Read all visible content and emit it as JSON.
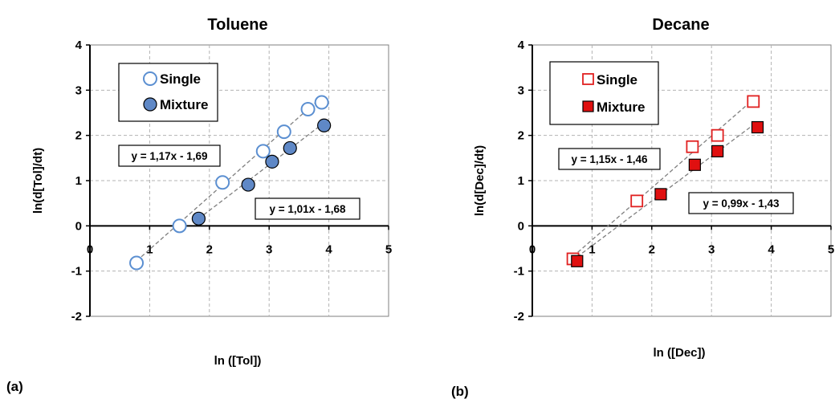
{
  "chart_data": [
    {
      "type": "scatter",
      "title": "Toluene",
      "xlabel": "ln ([Tol])",
      "ylabel": "ln(d[Tol]/dt)",
      "panel_label": "(a)",
      "xlim": [
        0,
        5
      ],
      "ylim": [
        -2,
        4
      ],
      "xticks": [
        "0",
        "1",
        "2",
        "3",
        "4",
        "5"
      ],
      "yticks": [
        "-2",
        "-1",
        "0",
        "1",
        "2",
        "3",
        "4"
      ],
      "grid": true,
      "legend_position": "top-left",
      "series": [
        {
          "name": "Single",
          "marker": "circle",
          "filled": false,
          "color": "#5b8fd1",
          "points": [
            [
              0.78,
              -0.82
            ],
            [
              1.5,
              0.0
            ],
            [
              2.22,
              0.96
            ],
            [
              2.9,
              1.65
            ],
            [
              3.25,
              2.08
            ],
            [
              3.65,
              2.58
            ],
            [
              3.88,
              2.73
            ]
          ]
        },
        {
          "name": "Mixture",
          "marker": "circle",
          "filled": true,
          "color": "#5f88c6",
          "points": [
            [
              1.82,
              0.16
            ],
            [
              2.65,
              0.91
            ],
            [
              3.05,
              1.42
            ],
            [
              3.35,
              1.72
            ],
            [
              3.92,
              2.22
            ]
          ]
        }
      ],
      "fits": [
        {
          "label": "y = 1,17x - 1,69",
          "x_range": [
            0.78,
            3.88
          ],
          "slope": 1.17,
          "intercept": -1.69
        },
        {
          "label": "y = 1,01x - 1,68",
          "x_range": [
            1.82,
            3.92
          ],
          "slope": 1.01,
          "intercept": -1.68
        }
      ]
    },
    {
      "type": "scatter",
      "title": "Decane",
      "xlabel": "ln ([Dec])",
      "ylabel": "ln(d[Dec]/dt)",
      "panel_label": "(b)",
      "xlim": [
        0,
        5
      ],
      "ylim": [
        -2,
        4
      ],
      "xticks": [
        "0",
        "1",
        "2",
        "3",
        "4",
        "5"
      ],
      "yticks": [
        "-2",
        "-1",
        "0",
        "1",
        "2",
        "3",
        "4"
      ],
      "grid": true,
      "legend_position": "top-left",
      "series": [
        {
          "name": "Single",
          "marker": "square",
          "filled": false,
          "color": "#e02020",
          "points": [
            [
              0.68,
              -0.73
            ],
            [
              1.75,
              0.55
            ],
            [
              2.68,
              1.75
            ],
            [
              3.1,
              2.0
            ],
            [
              3.7,
              2.75
            ]
          ]
        },
        {
          "name": "Mixture",
          "marker": "square",
          "filled": true,
          "color": "#e01010",
          "points": [
            [
              0.75,
              -0.78
            ],
            [
              2.15,
              0.7
            ],
            [
              2.72,
              1.35
            ],
            [
              3.1,
              1.65
            ],
            [
              3.77,
              2.18
            ]
          ]
        }
      ],
      "fits": [
        {
          "label": "y = 1,15x - 1,46",
          "x_range": [
            0.68,
            3.7
          ],
          "slope": 1.15,
          "intercept": -1.46
        },
        {
          "label": "y = 0,99x - 1,43",
          "x_range": [
            0.75,
            3.77
          ],
          "slope": 0.99,
          "intercept": -1.43
        }
      ]
    }
  ]
}
